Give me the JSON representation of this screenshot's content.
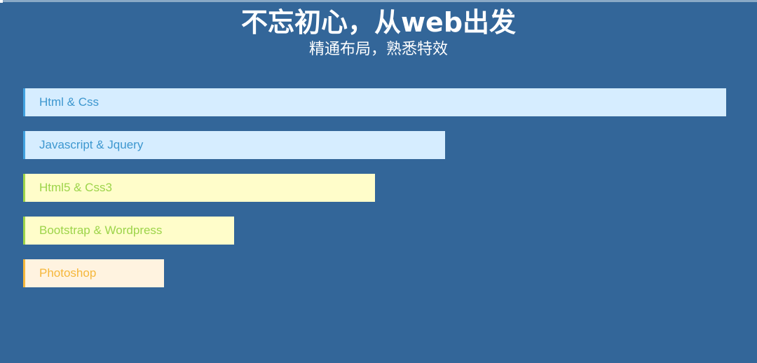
{
  "header": {
    "title": "不忘初心，从web出发",
    "subtitle": "精通布局，熟悉特效"
  },
  "skills": [
    {
      "label": "Html & Css",
      "level": 1.0,
      "bg": "#d6edff",
      "accent": "#42a2e0",
      "text_color": "#3d97cf"
    },
    {
      "label": "Javascript & Jquery",
      "level": 0.6,
      "bg": "#d6edff",
      "accent": "#42a2e0",
      "text_color": "#3d97cf"
    },
    {
      "label": "Html5 & Css3",
      "level": 0.5,
      "bg": "#fffdca",
      "accent": "#9dd44a",
      "text_color": "#9dd44a"
    },
    {
      "label": "Bootstrap & Wordpress",
      "level": 0.3,
      "bg": "#fffdca",
      "accent": "#9dd44a",
      "text_color": "#9dd44a"
    },
    {
      "label": "Photoshop",
      "level": 0.2,
      "bg": "#fff3e0",
      "accent": "#f5b73b",
      "text_color": "#f5b73b"
    }
  ],
  "colors": {
    "page_background": "#336699",
    "heading_text": "#ffffff"
  }
}
